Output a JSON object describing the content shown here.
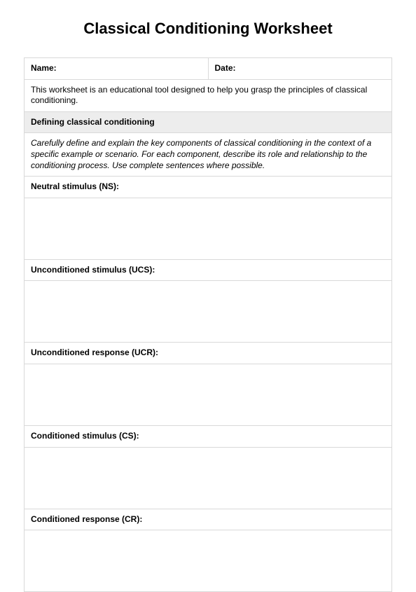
{
  "title": "Classical Conditioning Worksheet",
  "header": {
    "name_label": "Name:",
    "date_label": "Date:"
  },
  "intro": "This worksheet is an educational tool designed to help you grasp the principles of classical conditioning.",
  "section": {
    "heading": "Defining classical conditioning",
    "instructions": "Carefully define and explain the key components of classical conditioning in the context of a specific example or scenario. For each component, describe its role and relationship to the conditioning process. Use complete sentences where possible."
  },
  "fields": {
    "ns": "Neutral stimulus (NS):",
    "ucs": "Unconditioned stimulus (UCS):",
    "ucr": "Unconditioned response (UCR):",
    "cs": "Conditioned stimulus (CS):",
    "cr": "Conditioned response (CR):"
  },
  "colors": {
    "border": "#d9d9d9",
    "section_bg": "#ededed",
    "text": "#000000",
    "page_bg": "#ffffff"
  },
  "typography": {
    "title_fontsize": 22,
    "body_fontsize": 12,
    "font_family": "Arial"
  }
}
